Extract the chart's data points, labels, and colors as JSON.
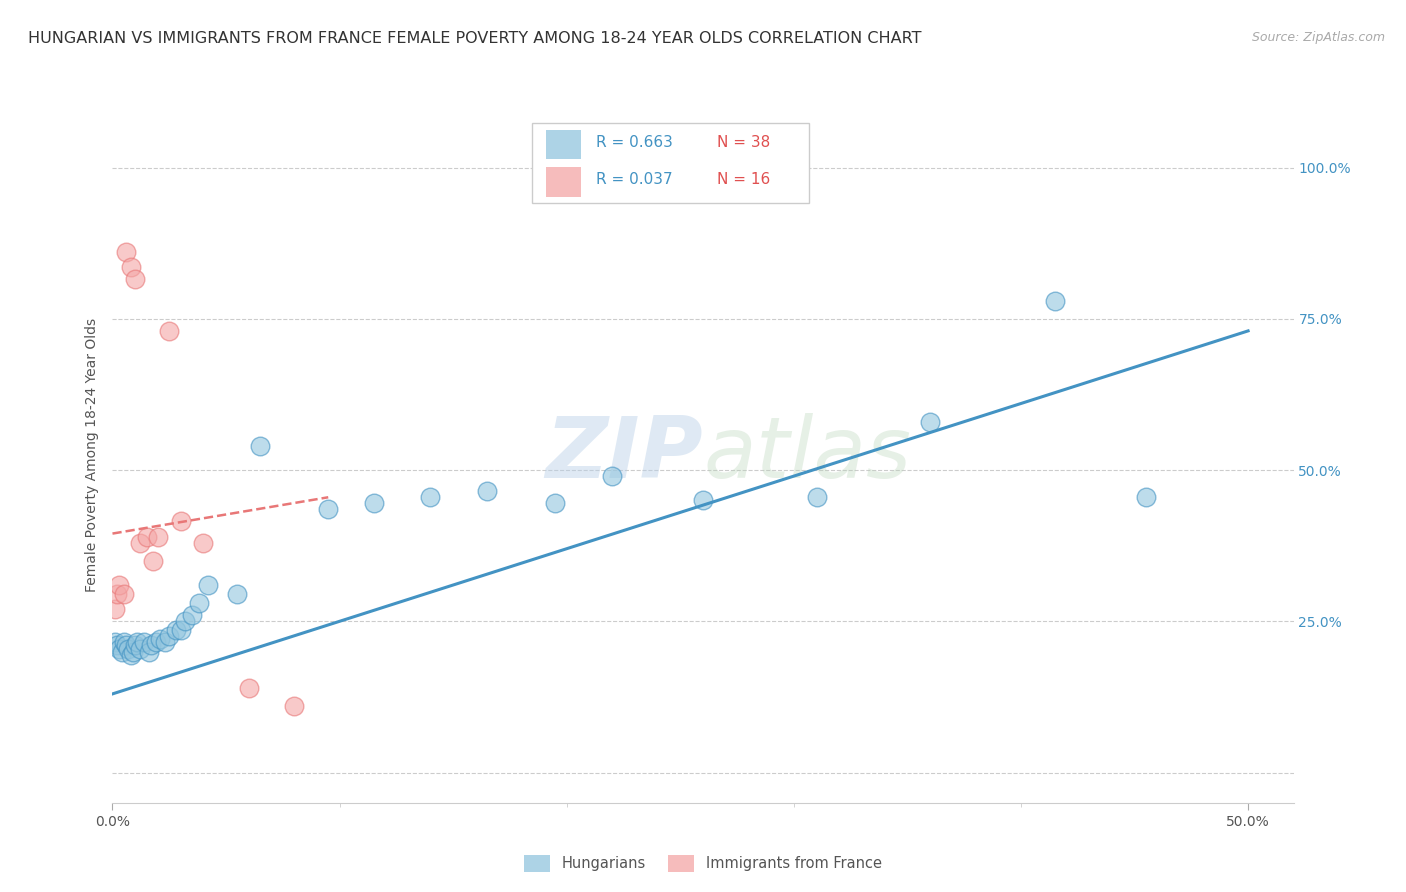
{
  "title": "HUNGARIAN VS IMMIGRANTS FROM FRANCE FEMALE POVERTY AMONG 18-24 YEAR OLDS CORRELATION CHART",
  "source": "Source: ZipAtlas.com",
  "ylabel": "Female Poverty Among 18-24 Year Olds",
  "xlim": [
    0.0,
    0.52
  ],
  "ylim": [
    -0.05,
    1.1
  ],
  "yticks": [
    0.0,
    0.25,
    0.5,
    0.75,
    1.0
  ],
  "yticklabels_right": [
    "",
    "25.0%",
    "50.0%",
    "75.0%",
    "100.0%"
  ],
  "xtick_positions": [
    0.0,
    0.5
  ],
  "xticklabels": [
    "0.0%",
    "50.0%"
  ],
  "blue_color": "#92c5de",
  "pink_color": "#f4a6a6",
  "blue_line_color": "#4393c3",
  "pink_line_color": "#e87777",
  "legend_blue_label": "Hungarians",
  "legend_pink_label": "Immigrants from France",
  "R_blue": "R = 0.663",
  "N_blue": "N = 38",
  "R_pink": "R = 0.037",
  "N_pink": "N = 16",
  "blue_scatter_x": [
    0.001,
    0.002,
    0.003,
    0.004,
    0.005,
    0.006,
    0.007,
    0.008,
    0.009,
    0.01,
    0.011,
    0.012,
    0.014,
    0.016,
    0.017,
    0.019,
    0.021,
    0.023,
    0.025,
    0.028,
    0.03,
    0.032,
    0.035,
    0.038,
    0.042,
    0.055,
    0.065,
    0.095,
    0.115,
    0.14,
    0.165,
    0.195,
    0.22,
    0.26,
    0.31,
    0.36,
    0.415,
    0.455
  ],
  "blue_scatter_y": [
    0.215,
    0.21,
    0.205,
    0.2,
    0.215,
    0.21,
    0.205,
    0.195,
    0.2,
    0.21,
    0.215,
    0.205,
    0.215,
    0.2,
    0.21,
    0.215,
    0.22,
    0.215,
    0.225,
    0.235,
    0.235,
    0.25,
    0.26,
    0.28,
    0.31,
    0.295,
    0.54,
    0.435,
    0.445,
    0.455,
    0.465,
    0.445,
    0.49,
    0.45,
    0.455,
    0.58,
    0.78,
    0.455
  ],
  "pink_scatter_x": [
    0.001,
    0.002,
    0.003,
    0.005,
    0.006,
    0.008,
    0.01,
    0.012,
    0.015,
    0.018,
    0.02,
    0.025,
    0.03,
    0.04,
    0.06,
    0.08
  ],
  "pink_scatter_y": [
    0.27,
    0.295,
    0.31,
    0.295,
    0.86,
    0.835,
    0.815,
    0.38,
    0.39,
    0.35,
    0.39,
    0.73,
    0.415,
    0.38,
    0.14,
    0.11
  ],
  "blue_line_x": [
    0.0,
    0.5
  ],
  "blue_line_y": [
    0.13,
    0.73
  ],
  "pink_line_x": [
    0.0,
    0.095
  ],
  "pink_line_y": [
    0.395,
    0.455
  ],
  "watermark_zip": "ZIP",
  "watermark_atlas": "atlas",
  "background_color": "#ffffff",
  "grid_color": "#cccccc",
  "title_fontsize": 11.5,
  "axis_label_fontsize": 10,
  "tick_fontsize": 10,
  "source_fontsize": 9
}
